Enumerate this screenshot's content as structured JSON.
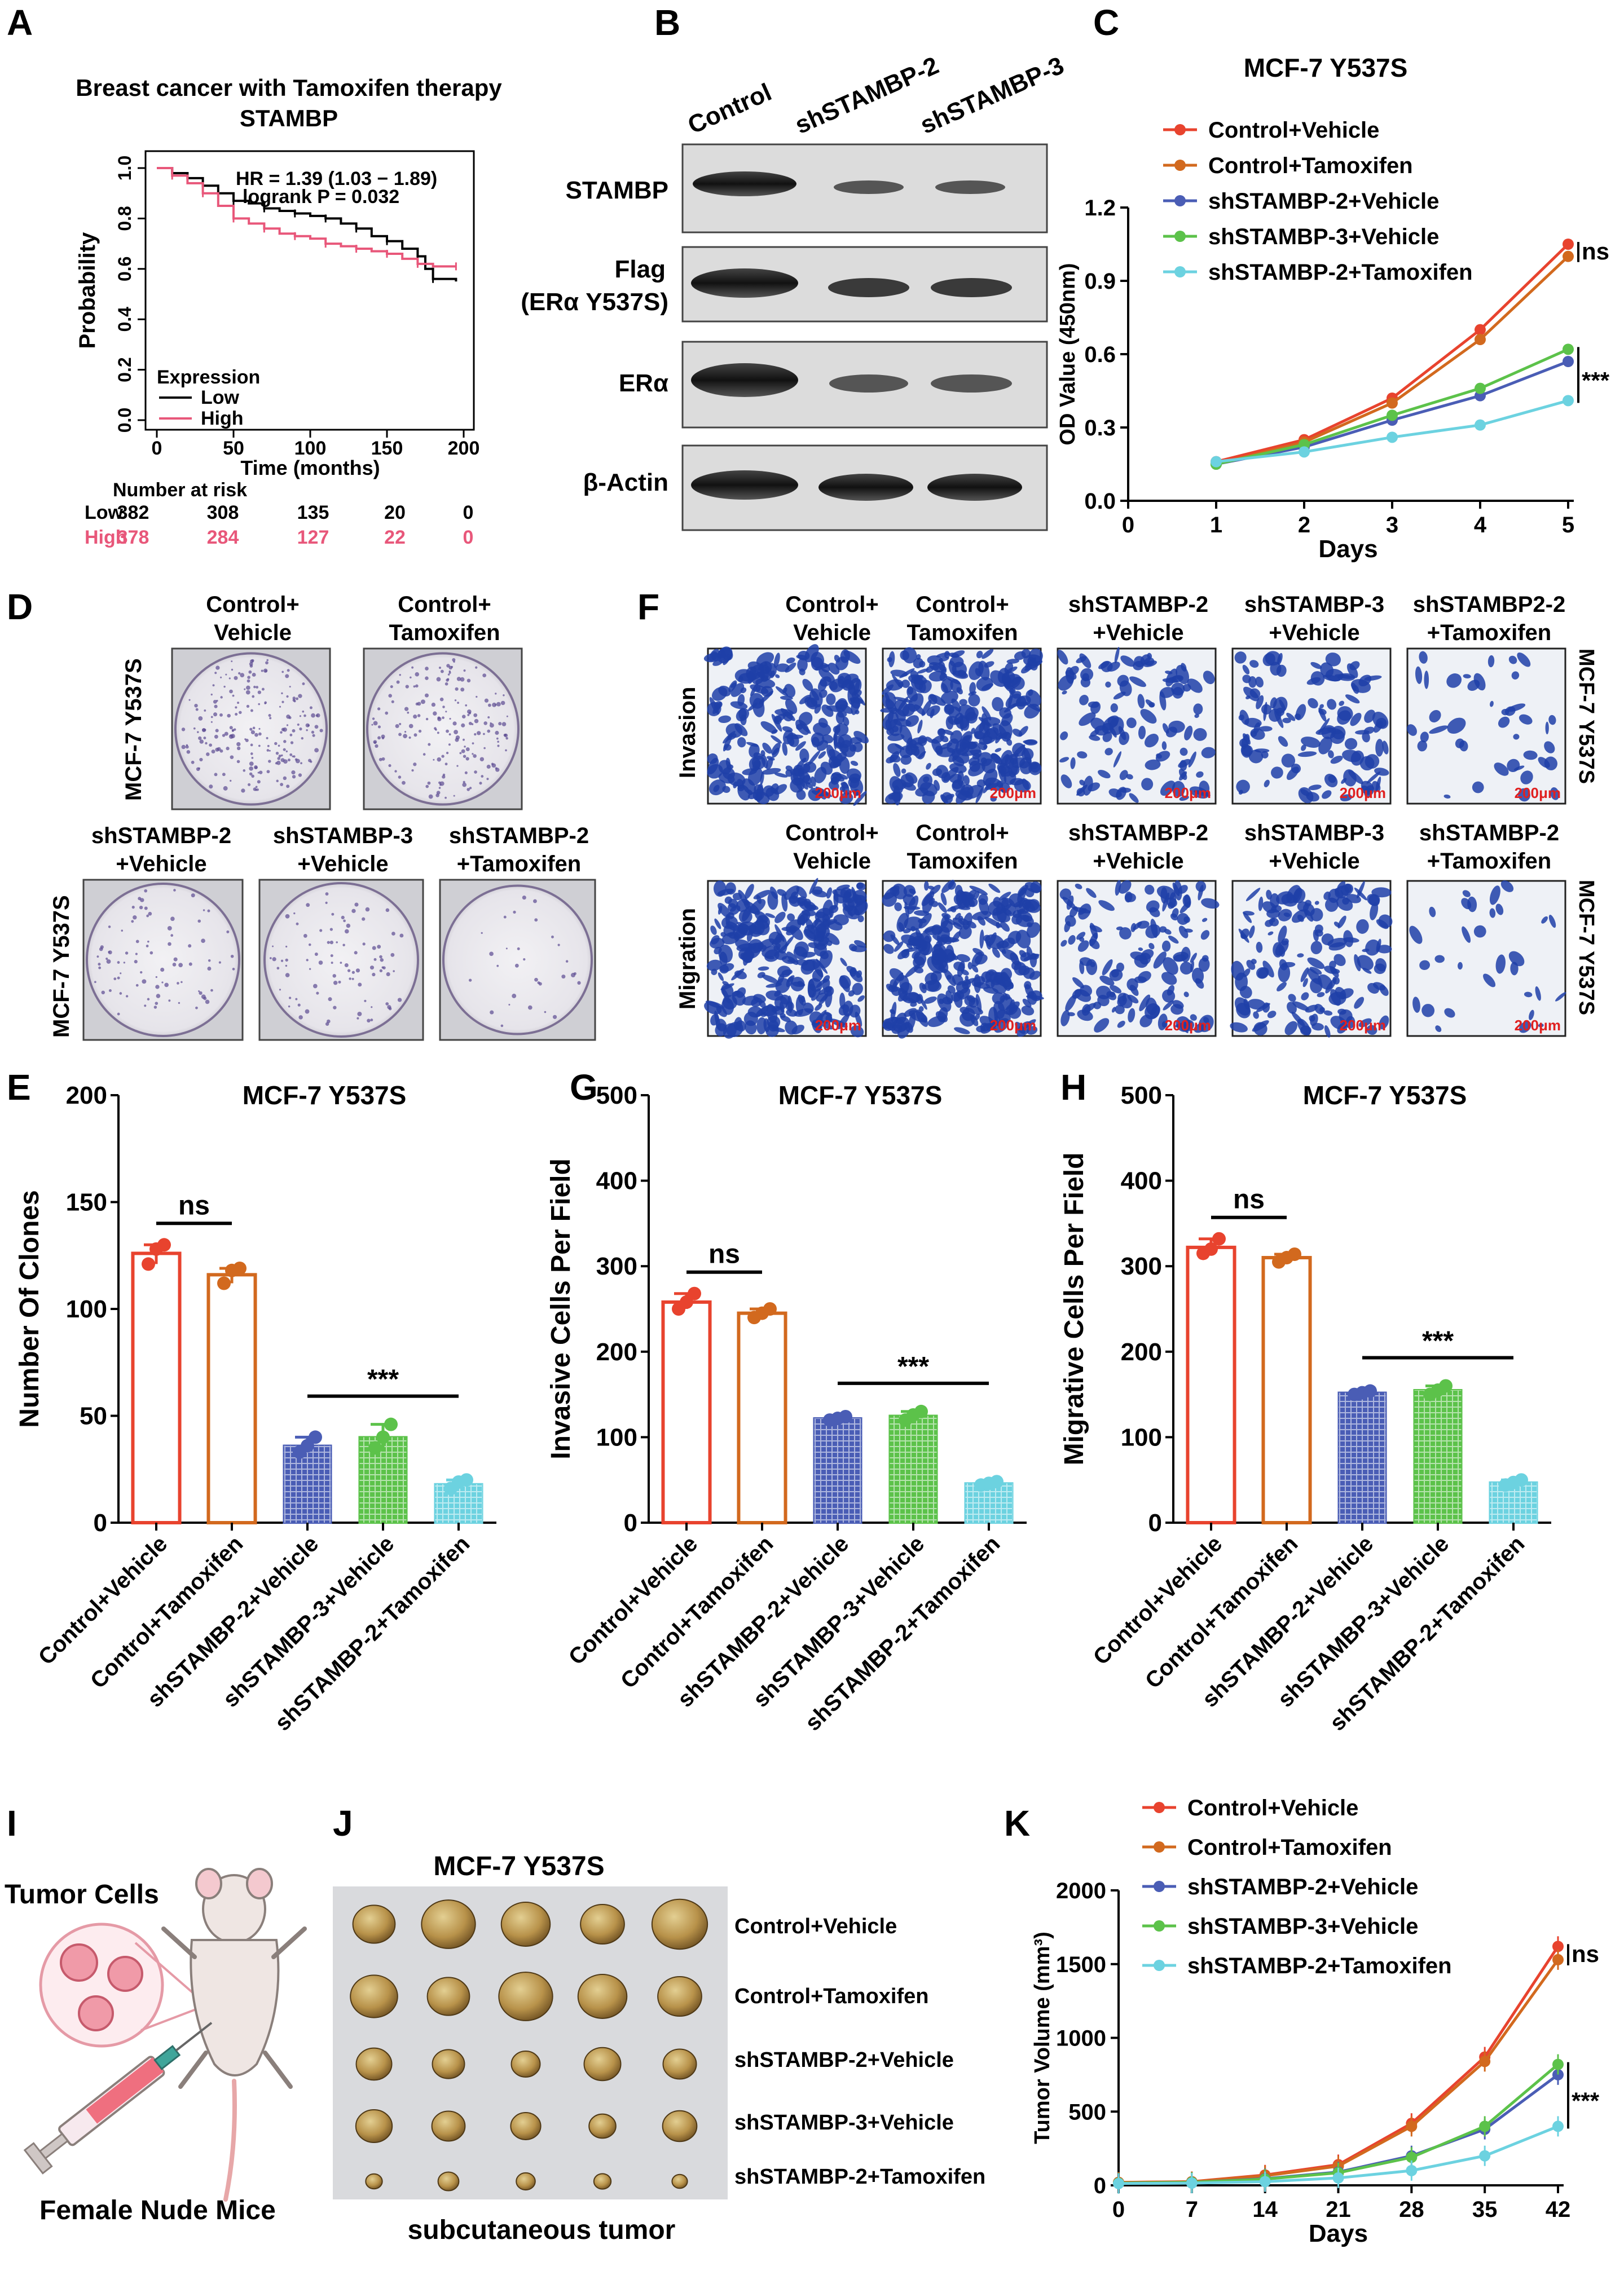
{
  "panel_labels": {
    "A": "A",
    "B": "B",
    "C": "C",
    "D": "D",
    "E": "E",
    "F": "F",
    "G": "G",
    "H": "H",
    "I": "I",
    "J": "J",
    "K": "K"
  },
  "panelA": {
    "title1": "Breast cancer with Tamoxifen therapy",
    "title2": "STAMBP",
    "hr": "HR = 1.39 (1.03 − 1.89)",
    "logrank": "logrank P = 0.032",
    "legend_title": "Expression",
    "legend_low": "Low",
    "legend_high": "High",
    "risk_title": "Number at risk",
    "risk_low_label": "Low",
    "risk_high_label": "High",
    "risk_low": [
      "382",
      "308",
      "135",
      "20",
      "0"
    ],
    "risk_high": [
      "378",
      "284",
      "127",
      "22",
      "0"
    ]
  },
  "panelB": {
    "lanes": [
      "Control",
      "shSTAMBP-2",
      "shSTAMBP-3"
    ],
    "rows": [
      "STAMBP",
      "Flag",
      "(ERα Y537S)",
      "ERα",
      "β-Actin"
    ]
  },
  "panelD": {
    "top_labels": [
      [
        "Control+",
        "Vehicle"
      ],
      [
        "Control+",
        "Tamoxifen"
      ]
    ],
    "bottom_labels": [
      [
        "shSTAMBP-2",
        "+Vehicle"
      ],
      [
        "shSTAMBP-3",
        "+Vehicle"
      ],
      [
        "shSTAMBP-2",
        "+Tamoxifen"
      ]
    ],
    "side": "MCF-7 Y537S"
  },
  "panelF": {
    "top_labels": [
      [
        "Control+",
        "Vehicle"
      ],
      [
        "Control+",
        "Tamoxifen"
      ],
      [
        "shSTAMBP-2",
        "+Vehicle"
      ],
      [
        "shSTAMBP-3",
        "+Vehicle"
      ],
      [
        "shSTAMBP2-2",
        "+Tamoxifen"
      ]
    ],
    "bottom_labels": [
      [
        "Control+",
        "Vehicle"
      ],
      [
        "Control+",
        "Tamoxifen"
      ],
      [
        "shSTAMBP-2",
        "+Vehicle"
      ],
      [
        "shSTAMBP-3",
        "+Vehicle"
      ],
      [
        "shSTAMBP-2",
        "+Tamoxifen"
      ]
    ],
    "row1": "Invasion",
    "row2": "Migration",
    "side": "MCF-7 Y537S",
    "scale": "200μm"
  },
  "panelI": {
    "title": "Tumor Cells",
    "footer": "Female Nude Mice"
  },
  "panelJ": {
    "title": "MCF-7 Y537S",
    "footer": "subcutaneous tumor",
    "rows": [
      "Control+Vehicle",
      "Control+Tamoxifen",
      "shSTAMBP-2+Vehicle",
      "shSTAMBP-3+Vehicle",
      "shSTAMBP-2+Tamoxifen"
    ]
  },
  "colors": {
    "control_vehicle": "#e8432e",
    "control_tamoxifen": "#d2691e",
    "sh2_vehicle": "#4a5db5",
    "sh3_vehicle": "#5cc24a",
    "sh2_tamoxifen": "#6cd2e0",
    "km_low": "#000000",
    "km_high": "#e8577a"
  },
  "chart_data": [
    {
      "id": "A",
      "type": "line",
      "xlabel": "Time (months)",
      "ylabel": "Probability",
      "xlim": [
        0,
        200
      ],
      "ylim": [
        0,
        1
      ],
      "xticks": [
        0,
        50,
        100,
        150,
        200
      ],
      "yticks": [
        0.0,
        0.2,
        0.4,
        0.6,
        0.8,
        1.0
      ],
      "series": [
        {
          "name": "Low",
          "x": [
            0,
            10,
            20,
            30,
            40,
            50,
            60,
            70,
            80,
            90,
            100,
            110,
            120,
            130,
            140,
            150,
            160,
            170,
            175,
            180,
            195
          ],
          "y": [
            1.0,
            0.98,
            0.96,
            0.93,
            0.9,
            0.87,
            0.86,
            0.84,
            0.83,
            0.82,
            0.81,
            0.8,
            0.78,
            0.76,
            0.73,
            0.71,
            0.68,
            0.65,
            0.6,
            0.56,
            0.55
          ]
        },
        {
          "name": "High",
          "x": [
            0,
            10,
            20,
            30,
            40,
            50,
            60,
            70,
            80,
            90,
            100,
            110,
            120,
            130,
            140,
            150,
            160,
            170,
            180,
            195
          ],
          "y": [
            1.0,
            0.97,
            0.94,
            0.9,
            0.85,
            0.8,
            0.78,
            0.76,
            0.74,
            0.73,
            0.72,
            0.7,
            0.69,
            0.68,
            0.67,
            0.66,
            0.64,
            0.62,
            0.61,
            0.61
          ]
        }
      ]
    },
    {
      "id": "C",
      "type": "line",
      "title": "MCF-7 Y537S",
      "xlabel": "Days",
      "ylabel": "OD Value (450nm)",
      "xlim": [
        0,
        5
      ],
      "ylim": [
        0,
        1.2
      ],
      "xticks": [
        0,
        1,
        2,
        3,
        4,
        5
      ],
      "yticks": [
        0.0,
        0.3,
        0.6,
        0.9,
        1.2
      ],
      "x": [
        1,
        2,
        3,
        4,
        5
      ],
      "series": [
        {
          "name": "Control+Vehicle",
          "values": [
            0.16,
            0.25,
            0.42,
            0.7,
            1.05
          ]
        },
        {
          "name": "Control+Tamoxifen",
          "values": [
            0.15,
            0.24,
            0.4,
            0.66,
            1.0
          ]
        },
        {
          "name": "shSTAMBP-2+Vehicle",
          "values": [
            0.15,
            0.22,
            0.33,
            0.43,
            0.57
          ]
        },
        {
          "name": "shSTAMBP-3+Vehicle",
          "values": [
            0.15,
            0.23,
            0.35,
            0.46,
            0.62
          ]
        },
        {
          "name": "shSTAMBP-2+Tamoxifen",
          "values": [
            0.16,
            0.2,
            0.26,
            0.31,
            0.41
          ]
        }
      ],
      "annotations": [
        "ns",
        "***"
      ]
    },
    {
      "id": "E",
      "type": "bar",
      "title": "MCF-7 Y537S",
      "ylabel": "Number Of Clones",
      "ylim": [
        0,
        200
      ],
      "yticks": [
        0,
        50,
        100,
        150,
        200
      ],
      "categories": [
        "Control+Vehicle",
        "Control+Tamoxifen",
        "shSTAMBP-2+Vehicle",
        "shSTAMBP-3+Vehicle",
        "shSTAMBP-2+Tamoxifen"
      ],
      "values": [
        126,
        116,
        36,
        40,
        18
      ],
      "points": [
        [
          121,
          128,
          130
        ],
        [
          112,
          118,
          119
        ],
        [
          33,
          36,
          40
        ],
        [
          35,
          40,
          46
        ],
        [
          16,
          19,
          20
        ]
      ],
      "annotations": [
        "ns",
        "***"
      ]
    },
    {
      "id": "G",
      "type": "bar",
      "title": "MCF-7 Y537S",
      "ylabel": "Invasive Cells Per Field",
      "ylim": [
        0,
        500
      ],
      "yticks": [
        0,
        100,
        200,
        300,
        400,
        500
      ],
      "categories": [
        "Control+Vehicle",
        "Control+Tamoxifen",
        "shSTAMBP-2+Vehicle",
        "shSTAMBP-3+Vehicle",
        "shSTAMBP-2+Tamoxifen"
      ],
      "values": [
        258,
        245,
        122,
        125,
        46
      ],
      "points": [
        [
          250,
          258,
          268
        ],
        [
          240,
          245,
          250
        ],
        [
          120,
          122,
          124
        ],
        [
          120,
          126,
          130
        ],
        [
          44,
          46,
          48
        ]
      ],
      "annotations": [
        "ns",
        "***"
      ]
    },
    {
      "id": "H",
      "type": "bar",
      "title": "MCF-7 Y537S",
      "ylabel": "Migrative Cells Per Field",
      "ylim": [
        0,
        500
      ],
      "yticks": [
        0,
        100,
        200,
        300,
        400,
        500
      ],
      "categories": [
        "Control+Vehicle",
        "Control+Tamoxifen",
        "shSTAMBP-2+Vehicle",
        "shSTAMBP-3+Vehicle",
        "shSTAMBP-2+Tamoxifen"
      ],
      "values": [
        322,
        310,
        152,
        155,
        47
      ],
      "points": [
        [
          315,
          320,
          332
        ],
        [
          305,
          310,
          314
        ],
        [
          150,
          152,
          154
        ],
        [
          150,
          155,
          160
        ],
        [
          44,
          47,
          50
        ]
      ],
      "annotations": [
        "ns",
        "***"
      ]
    },
    {
      "id": "K",
      "type": "line",
      "xlabel": "Days",
      "ylabel": "Tumor Volume (mm³)",
      "xlim": [
        0,
        42
      ],
      "ylim": [
        0,
        2000
      ],
      "xticks": [
        0,
        7,
        14,
        21,
        28,
        35,
        42
      ],
      "yticks": [
        0,
        500,
        1000,
        1500,
        2000
      ],
      "x": [
        0,
        7,
        14,
        21,
        28,
        35,
        42
      ],
      "series": [
        {
          "name": "Control+Vehicle",
          "values": [
            20,
            25,
            70,
            140,
            420,
            870,
            1620
          ]
        },
        {
          "name": "Control+Tamoxifen",
          "values": [
            20,
            24,
            65,
            130,
            400,
            840,
            1530
          ]
        },
        {
          "name": "shSTAMBP-2+Vehicle",
          "values": [
            15,
            20,
            45,
            90,
            200,
            380,
            750
          ]
        },
        {
          "name": "shSTAMBP-3+Vehicle",
          "values": [
            15,
            20,
            42,
            85,
            190,
            400,
            820
          ]
        },
        {
          "name": "shSTAMBP-2+Tamoxifen",
          "values": [
            12,
            15,
            25,
            50,
            100,
            200,
            400
          ]
        }
      ],
      "annotations": [
        "ns",
        "***"
      ]
    }
  ]
}
